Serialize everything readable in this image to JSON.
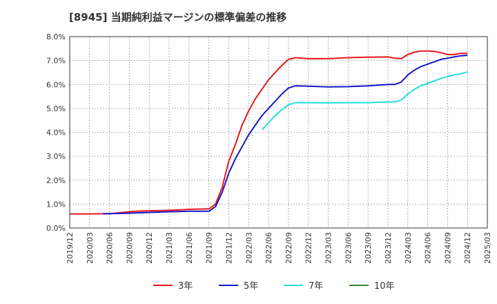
{
  "chart_data": {
    "type": "line",
    "title": "[8945]  当期純利益マージンの標準偏差の推移",
    "xlabel": "",
    "ylabel": "",
    "ylim": [
      0,
      8
    ],
    "grid": true,
    "legend_position": "bottom",
    "x_ticks": [
      "2019/12",
      "2020/03",
      "2020/06",
      "2020/09",
      "2020/12",
      "2021/03",
      "2021/06",
      "2021/09",
      "2021/12",
      "2022/03",
      "2022/06",
      "2022/09",
      "2022/12",
      "2023/03",
      "2023/06",
      "2023/09",
      "2023/12",
      "2024/03",
      "2024/06",
      "2024/09",
      "2024/12",
      "2025/03"
    ],
    "y_ticks": [
      "0.0%",
      "1.0%",
      "2.0%",
      "3.0%",
      "4.0%",
      "5.0%",
      "6.0%",
      "7.0%",
      "8.0%"
    ],
    "series": [
      {
        "name": "3年",
        "color": "#e8161b",
        "points": [
          [
            "2019/12",
            0.59
          ],
          [
            "2020/03",
            0.59
          ],
          [
            "2020/06",
            0.6
          ],
          [
            "2020/07",
            0.62
          ],
          [
            "2020/09",
            0.68
          ],
          [
            "2020/10",
            0.7
          ],
          [
            "2020/12",
            0.72
          ],
          [
            "2021/03",
            0.74
          ],
          [
            "2021/06",
            0.78
          ],
          [
            "2021/09",
            0.8
          ],
          [
            "2021/10",
            1.0
          ],
          [
            "2021/11",
            1.7
          ],
          [
            "2021/12",
            2.8
          ],
          [
            "2022/01",
            3.5
          ],
          [
            "2022/02",
            4.3
          ],
          [
            "2022/03",
            4.9
          ],
          [
            "2022/04",
            5.4
          ],
          [
            "2022/05",
            5.8
          ],
          [
            "2022/06",
            6.2
          ],
          [
            "2022/07",
            6.5
          ],
          [
            "2022/08",
            6.8
          ],
          [
            "2022/09",
            7.05
          ],
          [
            "2022/10",
            7.12
          ],
          [
            "2022/12",
            7.08
          ],
          [
            "2023/03",
            7.08
          ],
          [
            "2023/06",
            7.12
          ],
          [
            "2023/09",
            7.14
          ],
          [
            "2023/12",
            7.15
          ],
          [
            "2024/01",
            7.1
          ],
          [
            "2024/02",
            7.08
          ],
          [
            "2024/03",
            7.25
          ],
          [
            "2024/04",
            7.35
          ],
          [
            "2024/05",
            7.4
          ],
          [
            "2024/06",
            7.4
          ],
          [
            "2024/07",
            7.38
          ],
          [
            "2024/08",
            7.33
          ],
          [
            "2024/09",
            7.25
          ],
          [
            "2024/10",
            7.25
          ],
          [
            "2024/11",
            7.3
          ],
          [
            "2024/12",
            7.3
          ]
        ]
      },
      {
        "name": "5年",
        "color": "#1515c8",
        "points": [
          [
            "2020/05",
            0.6
          ],
          [
            "2020/06",
            0.6
          ],
          [
            "2020/09",
            0.62
          ],
          [
            "2020/12",
            0.65
          ],
          [
            "2021/03",
            0.68
          ],
          [
            "2021/06",
            0.7
          ],
          [
            "2021/09",
            0.7
          ],
          [
            "2021/10",
            0.9
          ],
          [
            "2021/11",
            1.5
          ],
          [
            "2021/12",
            2.3
          ],
          [
            "2022/01",
            2.9
          ],
          [
            "2022/02",
            3.4
          ],
          [
            "2022/03",
            3.9
          ],
          [
            "2022/04",
            4.3
          ],
          [
            "2022/05",
            4.7
          ],
          [
            "2022/06",
            5.0
          ],
          [
            "2022/07",
            5.3
          ],
          [
            "2022/08",
            5.6
          ],
          [
            "2022/09",
            5.85
          ],
          [
            "2022/10",
            5.94
          ],
          [
            "2022/12",
            5.93
          ],
          [
            "2023/03",
            5.9
          ],
          [
            "2023/06",
            5.91
          ],
          [
            "2023/09",
            5.94
          ],
          [
            "2023/12",
            6.0
          ],
          [
            "2024/01",
            6.0
          ],
          [
            "2024/02",
            6.1
          ],
          [
            "2024/03",
            6.4
          ],
          [
            "2024/04",
            6.6
          ],
          [
            "2024/05",
            6.75
          ],
          [
            "2024/06",
            6.85
          ],
          [
            "2024/07",
            6.95
          ],
          [
            "2024/08",
            7.05
          ],
          [
            "2024/09",
            7.1
          ],
          [
            "2024/10",
            7.15
          ],
          [
            "2024/11",
            7.2
          ],
          [
            "2024/12",
            7.22
          ]
        ]
      },
      {
        "name": "7年",
        "color": "#22dddd",
        "points": [
          [
            "2022/05",
            4.1
          ],
          [
            "2022/06",
            4.4
          ],
          [
            "2022/07",
            4.7
          ],
          [
            "2022/08",
            4.95
          ],
          [
            "2022/09",
            5.15
          ],
          [
            "2022/10",
            5.24
          ],
          [
            "2022/12",
            5.24
          ],
          [
            "2023/03",
            5.23
          ],
          [
            "2023/06",
            5.24
          ],
          [
            "2023/09",
            5.24
          ],
          [
            "2023/12",
            5.27
          ],
          [
            "2024/01",
            5.27
          ],
          [
            "2024/02",
            5.35
          ],
          [
            "2024/03",
            5.6
          ],
          [
            "2024/04",
            5.8
          ],
          [
            "2024/05",
            5.95
          ],
          [
            "2024/06",
            6.05
          ],
          [
            "2024/07",
            6.15
          ],
          [
            "2024/08",
            6.25
          ],
          [
            "2024/09",
            6.33
          ],
          [
            "2024/10",
            6.4
          ],
          [
            "2024/11",
            6.45
          ],
          [
            "2024/12",
            6.52
          ]
        ]
      },
      {
        "name": "10年",
        "color": "#2a8a2a",
        "points": []
      }
    ]
  }
}
